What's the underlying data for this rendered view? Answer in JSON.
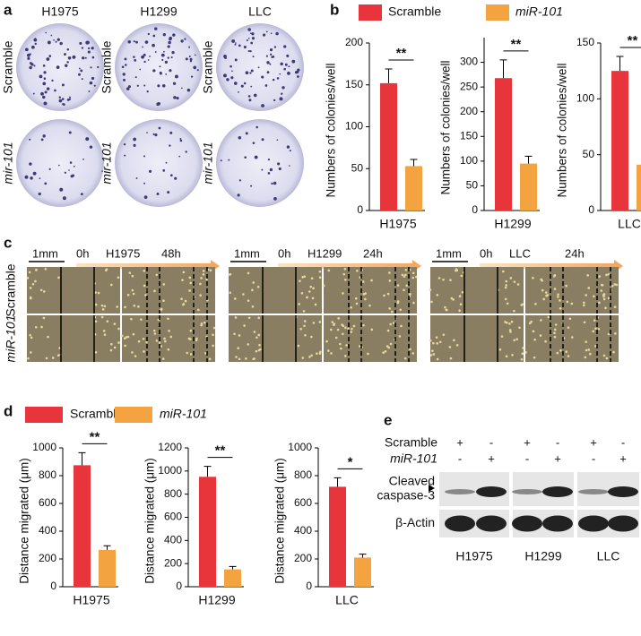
{
  "panel_labels": [
    "a",
    "b",
    "c",
    "d",
    "e"
  ],
  "colony_assay": {
    "cell_lines": [
      "H1975",
      "H1299",
      "LLC"
    ],
    "conditions": [
      "Scramble",
      "mir-101"
    ]
  },
  "legends": [
    [
      {
        "name": "Scramble",
        "color": "#e8343b"
      },
      {
        "name": "miR-101",
        "color": "#f3a33f"
      }
    ],
    [
      {
        "name": "Scramble",
        "color": "#e8343b"
      },
      {
        "name": "miR-101",
        "color": "#f3a33f"
      }
    ]
  ],
  "chart_data": [
    {
      "type": "bar",
      "categories": [
        "H1975"
      ],
      "ylabel": "Numbers of colonies/well",
      "significance": "**",
      "series": [
        {
          "color": "#e8343b",
          "values": [
            152
          ],
          "errors": [
            17
          ]
        },
        {
          "color": "#f3a33f",
          "values": [
            53
          ],
          "errors": [
            8
          ]
        }
      ],
      "ylim": [
        0,
        200
      ],
      "yticks": [
        0,
        50,
        100,
        150,
        200
      ]
    },
    {
      "type": "bar",
      "categories": [
        "H1299"
      ],
      "ylabel": "Numbers of colonies/well",
      "significance": "**",
      "series": [
        {
          "color": "#e8343b",
          "values": [
            268
          ],
          "errors": [
            37
          ]
        },
        {
          "color": "#f3a33f",
          "values": [
            95
          ],
          "errors": [
            15
          ]
        }
      ],
      "ylim": [
        0,
        350
      ],
      "yticks": [
        0,
        50,
        100,
        150,
        200,
        250,
        300
      ]
    },
    {
      "type": "bar",
      "categories": [
        "LLC"
      ],
      "ylabel": "Numbers of colonies/well",
      "significance": "**",
      "series": [
        {
          "color": "#e8343b",
          "values": [
            125
          ],
          "errors": [
            13
          ]
        },
        {
          "color": "#f3a33f",
          "values": [
            41
          ],
          "errors": [
            5
          ]
        }
      ],
      "ylim": [
        0,
        150
      ],
      "yticks": [
        0,
        50,
        100,
        150
      ]
    },
    {
      "type": "bar",
      "categories": [
        "H1975"
      ],
      "ylabel": "Distance migrated (μm)",
      "significance": "**",
      "series": [
        {
          "color": "#e8343b",
          "values": [
            875
          ],
          "errors": [
            90
          ]
        },
        {
          "color": "#f3a33f",
          "values": [
            265
          ],
          "errors": [
            30
          ]
        }
      ],
      "ylim": [
        0,
        1000
      ],
      "yticks": [
        0,
        200,
        400,
        600,
        800,
        1000
      ]
    },
    {
      "type": "bar",
      "categories": [
        "H1299"
      ],
      "ylabel": "Distance migrated (μm)",
      "significance": "**",
      "series": [
        {
          "color": "#e8343b",
          "values": [
            950
          ],
          "errors": [
            90
          ]
        },
        {
          "color": "#f3a33f",
          "values": [
            150
          ],
          "errors": [
            25
          ]
        }
      ],
      "ylim": [
        0,
        1200
      ],
      "yticks": [
        0,
        200,
        400,
        600,
        800,
        1000,
        1200
      ]
    },
    {
      "type": "bar",
      "categories": [
        "LLC"
      ],
      "ylabel": "Distance migrated (μm)",
      "significance": "*",
      "series": [
        {
          "color": "#e8343b",
          "values": [
            720
          ],
          "errors": [
            65
          ]
        },
        {
          "color": "#f3a33f",
          "values": [
            210
          ],
          "errors": [
            25
          ]
        }
      ],
      "ylim": [
        0,
        1000
      ],
      "yticks": [
        0,
        200,
        400,
        600,
        800,
        1000
      ]
    }
  ],
  "migration_assay": {
    "scale_bar": "1mm",
    "start_time": "0h",
    "groups": [
      {
        "cell_line": "H1975",
        "end_time": "48h"
      },
      {
        "cell_line": "H1299",
        "end_time": "24h"
      },
      {
        "cell_line": "LLC",
        "end_time": "24h"
      }
    ],
    "conditions": [
      "Scramble",
      "miR-101"
    ]
  },
  "western_blot": {
    "conditions": [
      "Scramble",
      "miR-101"
    ],
    "signs": [
      [
        "+",
        "-",
        "+",
        "-",
        "+",
        "-"
      ],
      [
        "-",
        "+",
        "-",
        "+",
        "-",
        "+"
      ]
    ],
    "bands": [
      [
        "Cleaved",
        "caspase-3"
      ],
      [
        "β-Actin"
      ]
    ],
    "cell_lines": [
      "H1975",
      "H1299",
      "LLC"
    ]
  }
}
